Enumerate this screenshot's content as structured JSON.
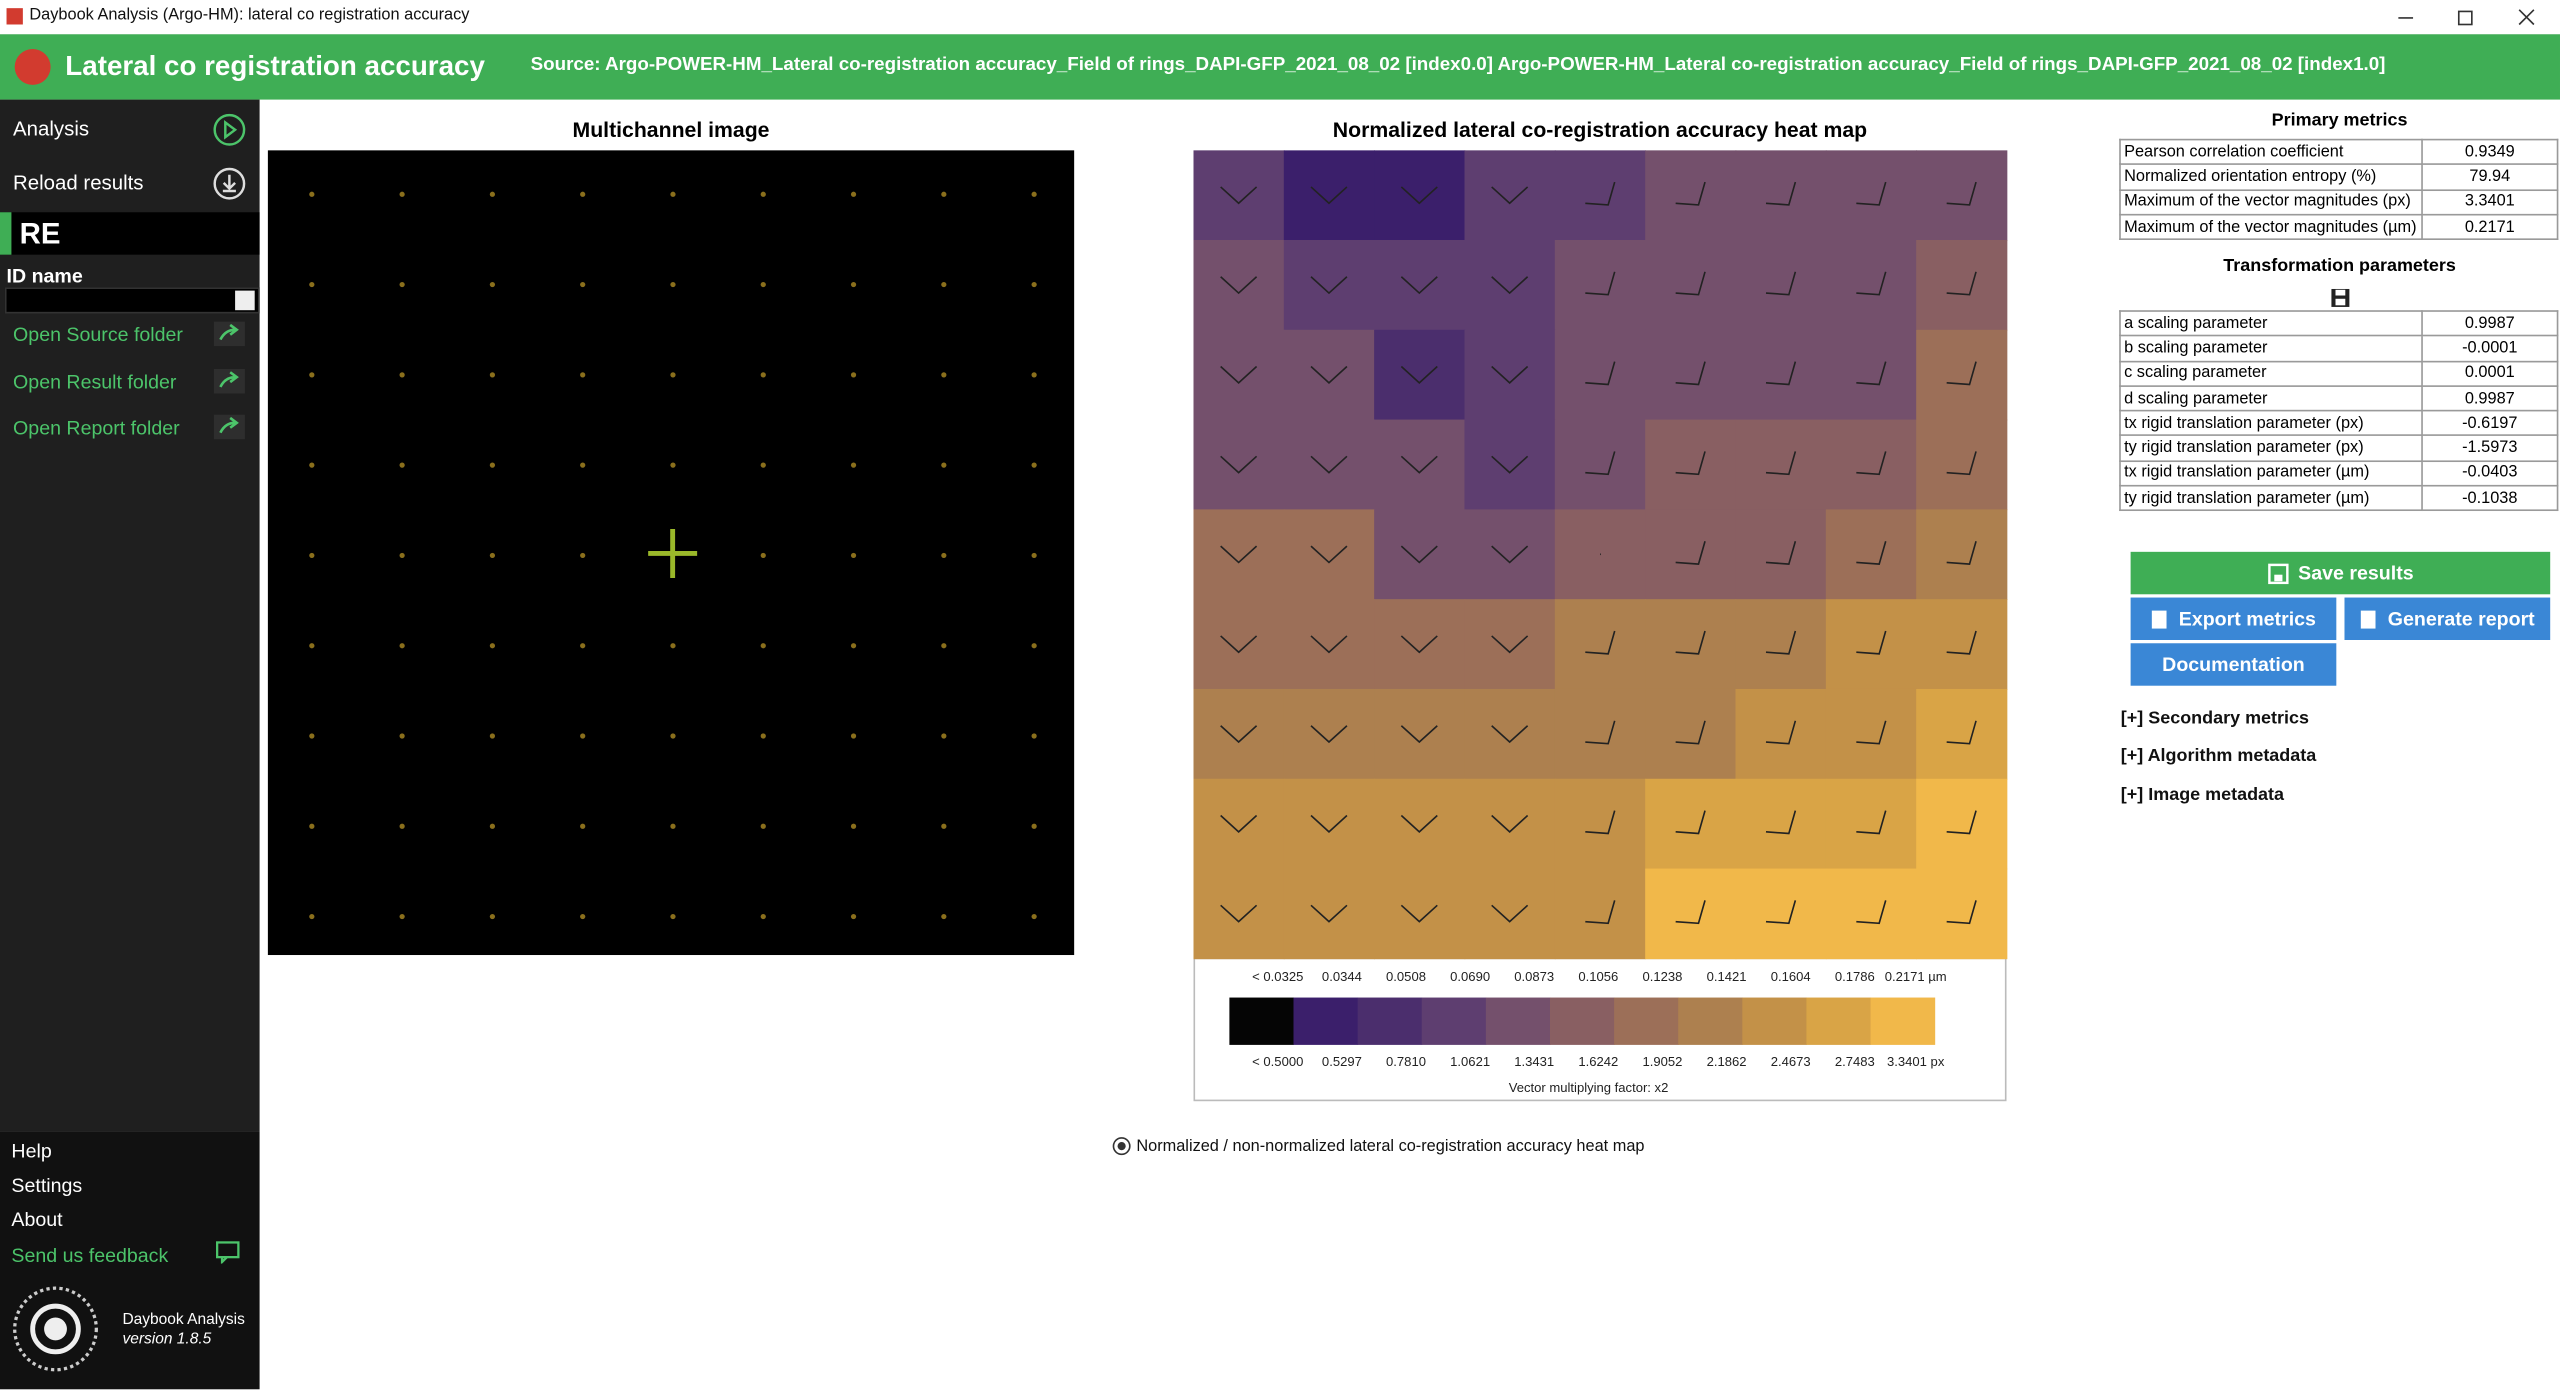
{
  "window": {
    "title": "Daybook Analysis (Argo-HM): lateral co registration accuracy"
  },
  "header": {
    "title": "Lateral co registration accuracy",
    "source": "Source: Argo-POWER-HM_Lateral co-registration accuracy_Field of rings_DAPI-GFP_2021_08_02 [index0.0]  Argo-POWER-HM_Lateral co-registration accuracy_Field of rings_DAPI-GFP_2021_08_02 [index1.0]"
  },
  "sidebar": {
    "nav": [
      "Analysis",
      "Reload results"
    ],
    "badge": "RE",
    "id_label": "ID name",
    "links": [
      "Open Source folder",
      "Open Result folder",
      "Open Report folder"
    ],
    "footer_links": [
      "Help",
      "Settings",
      "About",
      "Send us feedback"
    ],
    "app_name": "Daybook Analysis",
    "version": "version 1.8.5"
  },
  "multichannel": {
    "title": "Multichannel image"
  },
  "heatmap": {
    "title": "Normalized lateral co-registration accuracy heat map",
    "levels": [
      [
        3,
        1,
        1,
        3,
        3,
        4,
        4,
        4,
        4
      ],
      [
        4,
        3,
        3,
        3,
        4,
        4,
        4,
        4,
        5
      ],
      [
        4,
        4,
        2,
        3,
        4,
        4,
        4,
        4,
        6
      ],
      [
        4,
        4,
        4,
        3,
        4,
        5,
        5,
        5,
        6
      ],
      [
        6,
        6,
        4,
        4,
        5,
        5,
        5,
        6,
        7
      ],
      [
        6,
        6,
        6,
        6,
        7,
        7,
        7,
        8,
        8
      ],
      [
        7,
        7,
        7,
        7,
        7,
        7,
        8,
        8,
        9
      ],
      [
        8,
        8,
        8,
        8,
        8,
        9,
        9,
        9,
        10
      ],
      [
        8,
        8,
        8,
        8,
        8,
        10,
        10,
        10,
        10
      ]
    ],
    "scale": {
      "top_labels": [
        "< 0.0325",
        "0.0344",
        "0.0508",
        "0.0690",
        "0.0873",
        "0.1056",
        "0.1238",
        "0.1421",
        "0.1604",
        "0.1786",
        "0.2171 µm"
      ],
      "bottom_labels": [
        "< 0.5000",
        "0.5297",
        "0.7810",
        "1.0621",
        "1.3431",
        "1.6242",
        "1.9052",
        "2.1862",
        "2.4673",
        "2.7483",
        "3.3401 px"
      ],
      "colors": [
        "#050505",
        "#3b1f6b",
        "#4b2e6d",
        "#5e3e70",
        "#74506c",
        "#895f62",
        "#9c6f58",
        "#ad804f",
        "#c39148",
        "#d9a446",
        "#f1b84a"
      ],
      "caption": "Vector multiplying factor: x2"
    },
    "toggle_label": "Normalized / non-normalized lateral co-registration accuracy heat map"
  },
  "primary_metrics": {
    "title": "Primary metrics",
    "rows": [
      [
        "Pearson correlation coefficient",
        0.9349
      ],
      [
        "Normalized orientation entropy (%)",
        79.94
      ],
      [
        "Maximum of the vector magnitudes (px)",
        3.3401
      ],
      [
        "Maximum of the vector magnitudes (µm)",
        0.2171
      ]
    ]
  },
  "transformation": {
    "title": "Transformation parameters",
    "rows": [
      [
        "a scaling parameter",
        0.9987
      ],
      [
        "b scaling parameter",
        -0.0001
      ],
      [
        "c scaling parameter",
        0.0001
      ],
      [
        "d scaling parameter",
        0.9987
      ],
      [
        "tx rigid translation parameter (px)",
        -0.6197
      ],
      [
        "ty rigid translation parameter (px)",
        -1.5973
      ],
      [
        "tx rigid translation parameter (µm)",
        -0.0403
      ],
      [
        "ty rigid translation parameter (µm)",
        -0.1038
      ]
    ]
  },
  "buttons": [
    "Save results",
    "Export metrics",
    "Generate report",
    "Documentation"
  ],
  "expanders": [
    "[+] Secondary metrics",
    "[+] Algorithm metadata",
    "[+] Image metadata"
  ]
}
